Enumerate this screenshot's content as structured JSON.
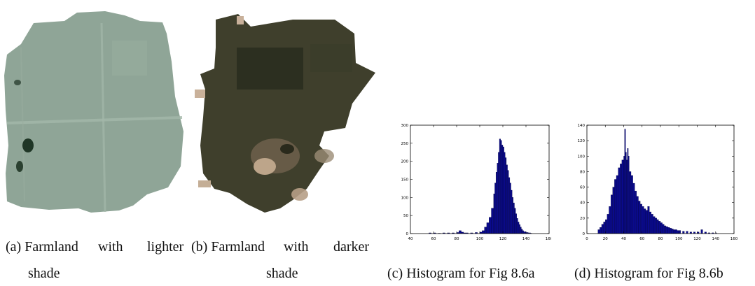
{
  "figure": {
    "subfigures": [
      {
        "id": "a",
        "caption_line1_words": [
          "(a) Farmland",
          "with",
          "lighter"
        ],
        "caption_line2": "shade"
      },
      {
        "id": "b",
        "caption_line1_words": [
          "(b) Farmland",
          "with",
          "darker"
        ],
        "caption_line2": "shade"
      },
      {
        "id": "c",
        "caption": "(c) Histogram for Fig 8.6a"
      },
      {
        "id": "d",
        "caption": "(d) Histogram for Fig 8.6b"
      }
    ],
    "colors": {
      "light_field": "#8fa597",
      "dark_field": "#3f3f2c",
      "bar_fill": "#0a0a8c",
      "bar_edge": "#000033"
    }
  },
  "chart_data": [
    {
      "type": "bar",
      "xlim": [
        40,
        160
      ],
      "ylim": [
        0,
        300
      ],
      "xticks": [
        40,
        60,
        80,
        100,
        120,
        140,
        160
      ],
      "yticks": [
        0,
        50,
        100,
        150,
        200,
        250,
        300
      ],
      "bins": {
        "x": [
          56,
          60,
          64,
          68,
          72,
          76,
          80,
          82,
          84,
          86,
          88,
          92,
          96,
          100,
          102,
          104,
          106,
          108,
          110,
          112,
          113,
          114,
          115,
          116,
          117,
          118,
          119,
          120,
          121,
          122,
          123,
          124,
          125,
          126,
          127,
          128,
          129,
          130,
          131,
          132,
          133,
          134,
          135,
          136,
          137,
          138,
          140,
          142,
          144
        ],
        "values": [
          2,
          2,
          1,
          2,
          2,
          2,
          3,
          8,
          4,
          2,
          2,
          2,
          3,
          4,
          8,
          18,
          30,
          45,
          70,
          110,
          140,
          170,
          195,
          225,
          262,
          258,
          245,
          240,
          225,
          210,
          190,
          175,
          155,
          140,
          120,
          100,
          85,
          70,
          55,
          42,
          32,
          25,
          18,
          12,
          8,
          5,
          3,
          2,
          1
        ]
      }
    },
    {
      "type": "bar",
      "xlim": [
        0,
        160
      ],
      "ylim": [
        0,
        140
      ],
      "xticks": [
        0,
        20,
        40,
        60,
        80,
        100,
        120,
        140,
        160
      ],
      "yticks": [
        0,
        20,
        40,
        60,
        80,
        100,
        120,
        140
      ],
      "bins": {
        "x": [
          12,
          14,
          16,
          18,
          20,
          22,
          24,
          26,
          28,
          30,
          32,
          34,
          36,
          38,
          40,
          41,
          42,
          43,
          44,
          45,
          46,
          48,
          50,
          52,
          54,
          56,
          58,
          60,
          62,
          64,
          66,
          68,
          70,
          72,
          74,
          76,
          78,
          80,
          82,
          84,
          86,
          88,
          90,
          92,
          94,
          96,
          98,
          100,
          104,
          108,
          112,
          116,
          120,
          124,
          128,
          132,
          136,
          140
        ],
        "values": [
          5,
          8,
          12,
          15,
          18,
          25,
          35,
          50,
          60,
          70,
          75,
          85,
          90,
          95,
          100,
          135,
          105,
          95,
          110,
          100,
          80,
          75,
          65,
          55,
          48,
          42,
          38,
          35,
          32,
          30,
          35,
          28,
          25,
          22,
          20,
          18,
          16,
          14,
          12,
          10,
          9,
          8,
          7,
          6,
          5,
          5,
          4,
          4,
          3,
          3,
          2,
          2,
          2,
          5,
          2,
          1,
          1,
          1
        ]
      }
    }
  ]
}
